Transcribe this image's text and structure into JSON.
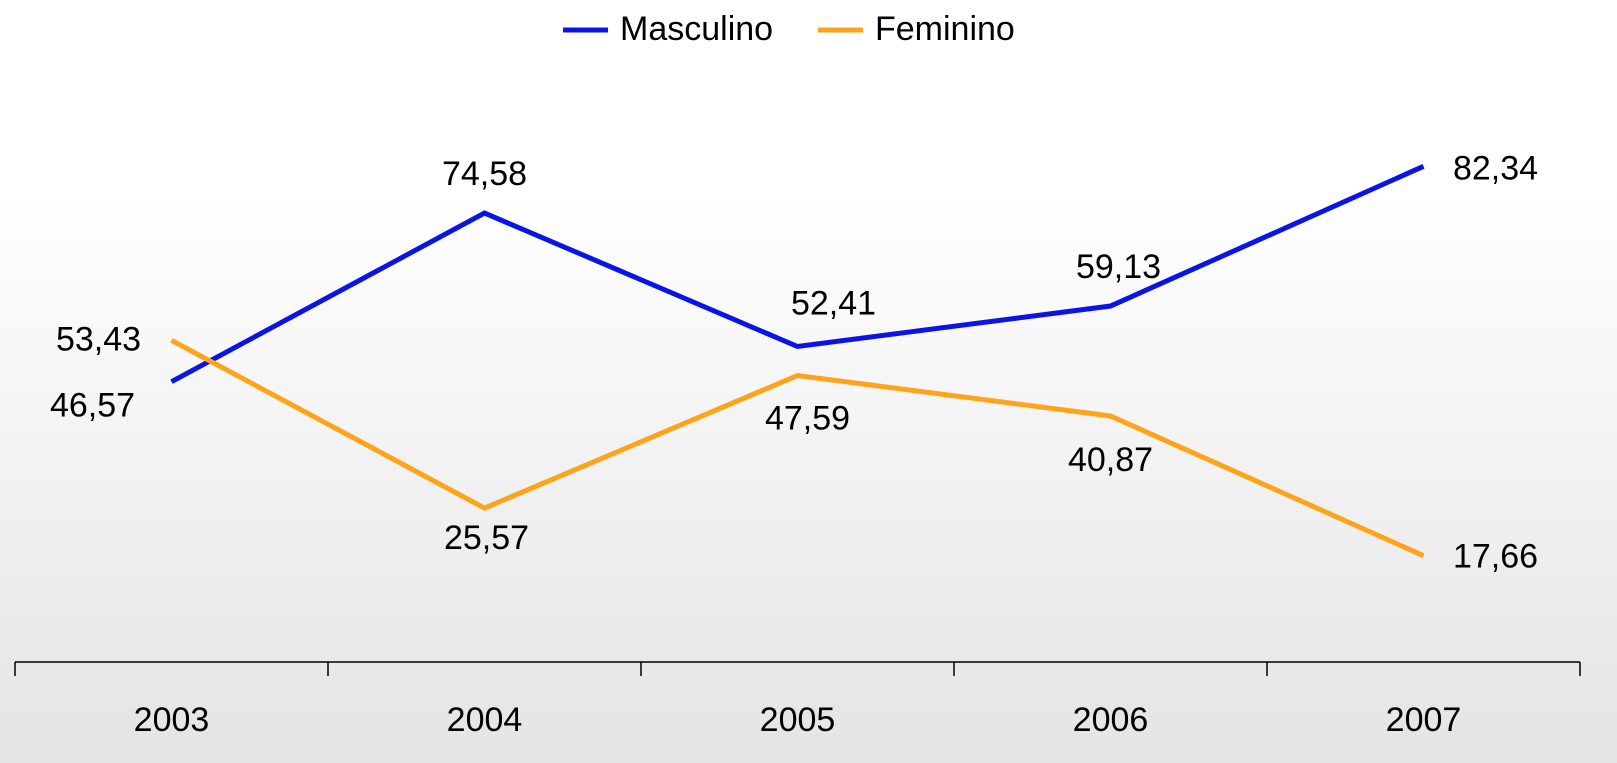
{
  "chart_data": {
    "type": "line",
    "categories": [
      "2003",
      "2004",
      "2005",
      "2006",
      "2007"
    ],
    "series": [
      {
        "name": "Masculino",
        "color": "#0a14e6",
        "values": [
          46.57,
          74.58,
          52.41,
          59.13,
          82.34
        ],
        "value_labels": [
          "46,57",
          "74,58",
          "52,41",
          "59,13",
          "82,34"
        ]
      },
      {
        "name": "Feminino",
        "color": "#ffa31a",
        "values": [
          53.43,
          25.57,
          47.59,
          40.87,
          17.66
        ],
        "value_labels": [
          "53,43",
          "25,57",
          "47,59",
          "40,87",
          "17,66"
        ]
      }
    ],
    "ylim": [
      0,
      100
    ],
    "legend": "top"
  }
}
